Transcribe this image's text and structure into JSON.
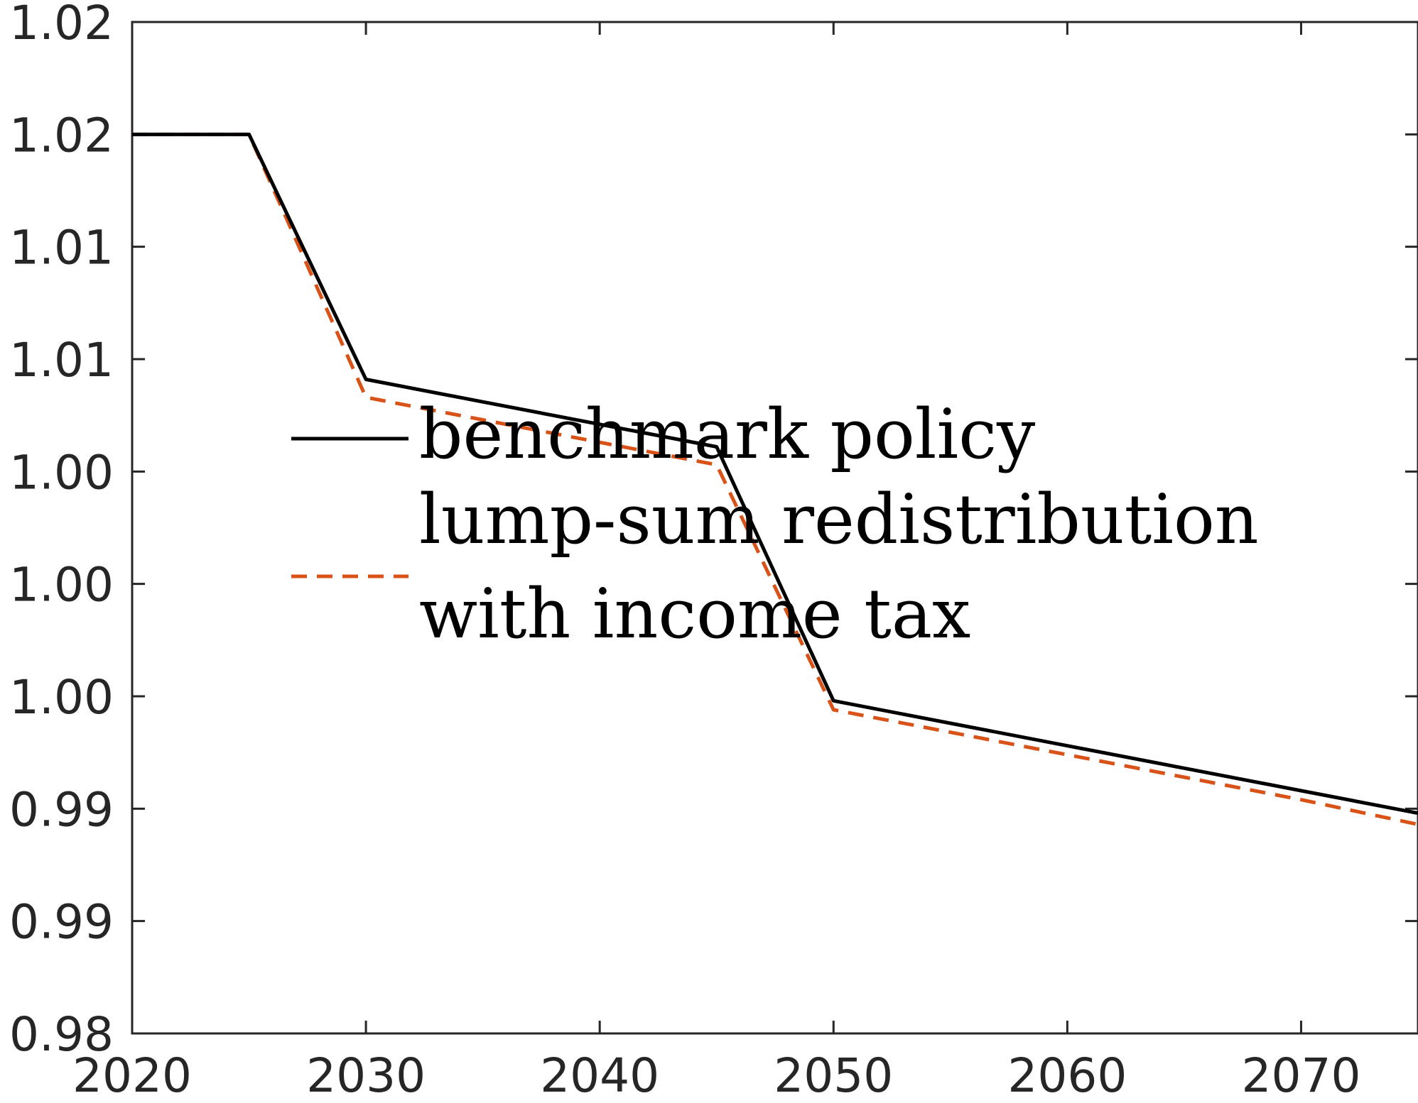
{
  "chart_data": {
    "type": "line",
    "title": "",
    "xlabel": "",
    "ylabel": "",
    "xlim": [
      2020,
      2075
    ],
    "ylim": [
      0.98,
      1.025
    ],
    "grid": false,
    "x_ticks": [
      {
        "value": 2020,
        "label": "2020"
      },
      {
        "value": 2030,
        "label": "2030"
      },
      {
        "value": 2040,
        "label": "2040"
      },
      {
        "value": 2050,
        "label": "2050"
      },
      {
        "value": 2060,
        "label": "2060"
      },
      {
        "value": 2070,
        "label": "2070"
      }
    ],
    "y_ticks": [
      {
        "value": 0.98,
        "label": "0.98"
      },
      {
        "value": 0.985,
        "label": "0.99"
      },
      {
        "value": 0.99,
        "label": "0.99"
      },
      {
        "value": 0.995,
        "label": "1.00"
      },
      {
        "value": 1.0,
        "label": "1.00"
      },
      {
        "value": 1.005,
        "label": "1.00"
      },
      {
        "value": 1.01,
        "label": "1.01"
      },
      {
        "value": 1.015,
        "label": "1.01"
      },
      {
        "value": 1.02,
        "label": "1.02"
      },
      {
        "value": 1.025,
        "label": "1.02"
      }
    ],
    "legend": {
      "location": "center",
      "entries": [
        {
          "series": 0,
          "lines": [
            "benchmark policy"
          ]
        },
        {
          "series": 1,
          "lines": [
            "lump-sum redistribution",
            "with income tax"
          ]
        }
      ]
    },
    "series": [
      {
        "name": "benchmark policy",
        "color": "#000000",
        "style": "solid",
        "x": [
          2020,
          2025,
          2030,
          2035,
          2040,
          2045,
          2050,
          2055,
          2060,
          2065,
          2070,
          2075
        ],
        "y": [
          1.02,
          1.02,
          1.0091,
          1.0081,
          1.0071,
          1.0061,
          0.9948,
          0.9938,
          0.9928,
          0.9918,
          0.9908,
          0.9898
        ]
      },
      {
        "name": "lump-sum redistribution with income tax",
        "color": "#D95319",
        "style": "dashed",
        "x": [
          2020,
          2025,
          2030,
          2035,
          2040,
          2045,
          2050,
          2055,
          2060,
          2065,
          2070,
          2075
        ],
        "y": [
          1.02,
          1.02,
          1.0083,
          1.0073,
          1.0063,
          1.0053,
          0.9944,
          0.9934,
          0.9924,
          0.9914,
          0.9904,
          0.9893
        ]
      }
    ]
  }
}
